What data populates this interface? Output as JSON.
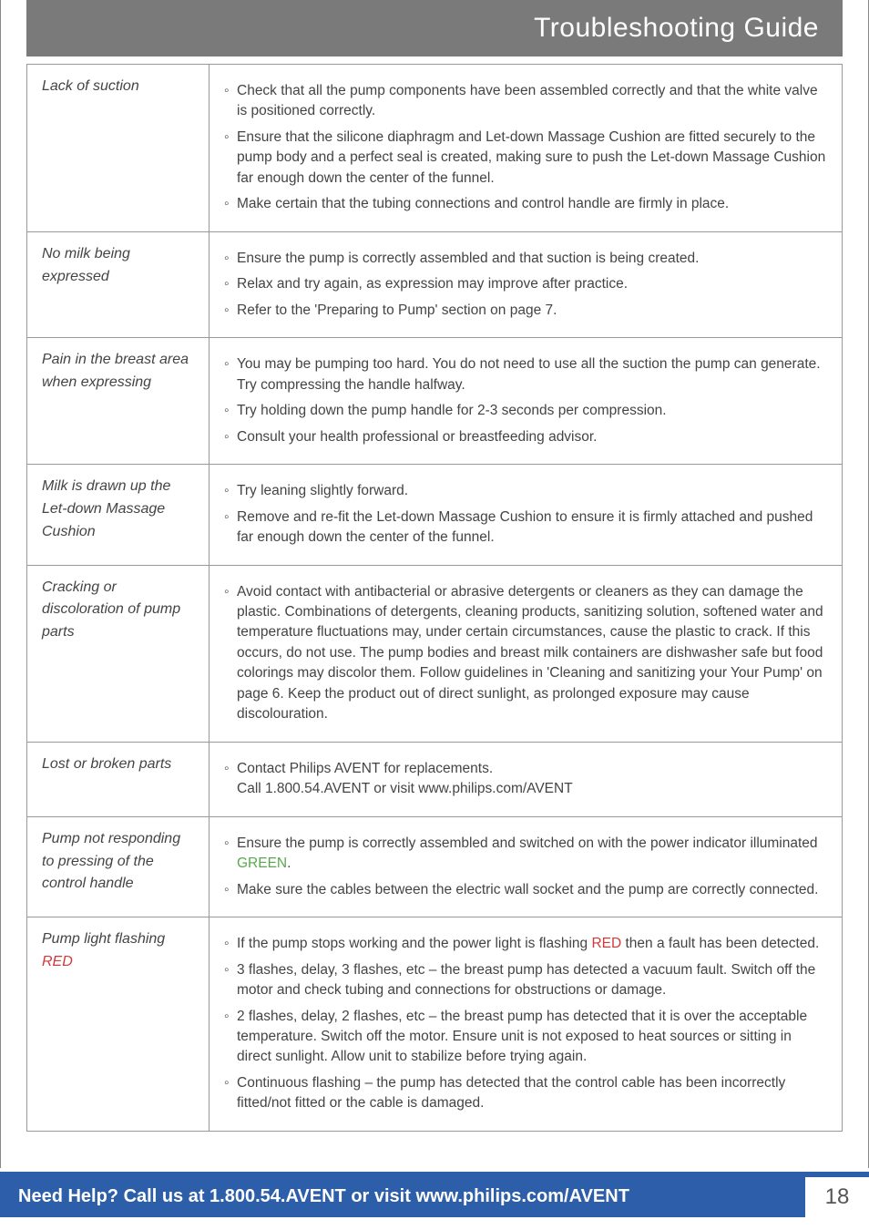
{
  "header": {
    "title": "Troubleshooting Guide"
  },
  "rows": [
    {
      "problem": "Lack of suction",
      "items": [
        "Check that all the pump components have been assembled correctly and that the white valve is positioned correctly.",
        "Ensure that the silicone diaphragm and Let-down Massage Cushion are fitted securely to the pump body and a perfect seal is created, making sure to push the Let-down Massage Cushion far enough down the center of the funnel.",
        "Make certain that the tubing connections and control handle are firmly in place."
      ]
    },
    {
      "problem": "No milk being expressed",
      "items": [
        "Ensure the pump is correctly assembled and that suction is being created.",
        "Relax and try again, as expression may improve after practice.",
        "Refer to the 'Preparing to Pump' section on page 7."
      ]
    },
    {
      "problem": "Pain in the breast area when expressing",
      "items": [
        "You may be pumping too hard. You do not need to use all the suction the pump can generate. Try compressing the handle halfway.",
        "Try holding down the pump handle for 2-3 seconds per compression.",
        "Consult your health professional or breastfeeding advisor."
      ]
    },
    {
      "problem": "Milk is drawn up the Let-down Massage Cushion",
      "items": [
        "Try leaning slightly forward.",
        "Remove and re-fit the Let-down Massage Cushion to ensure it is firmly attached and pushed far enough down the center of the funnel."
      ]
    },
    {
      "problem": "Cracking or discoloration of pump parts",
      "items": [
        "Avoid contact with antibacterial or abrasive detergents or cleaners as they can damage the plastic. Combinations of detergents, cleaning products, sanitizing solution, softened water and temperature fluctuations may, under certain circumstances, cause the plastic to crack. If this occurs, do not use. The pump bodies and breast milk containers are dishwasher safe but food colorings may discolor them. Follow guidelines in 'Cleaning and sanitizing your Your Pump' on page 6. Keep the product out of direct sunlight, as prolonged exposure may cause discolouration."
      ]
    },
    {
      "problem": "Lost or broken parts",
      "items": [
        "Contact Philips AVENT for replacements.\nCall 1.800.54.AVENT or visit www.philips.com/AVENT"
      ]
    },
    {
      "problem_html": "Pump not responding to pressing of the control handle",
      "items_html": [
        "Ensure the pump is correctly assembled and switched on with the power indicator illuminated <span class='green'>GREEN</span>.",
        "Make sure the cables between the electric wall socket and the pump are correctly connected."
      ]
    },
    {
      "problem_html": "Pump light flashing <span class='red'>RED</span>",
      "items_html": [
        "If the pump stops working and the power light is flashing <span class='red'>RED</span> then a fault has been detected.",
        "3 flashes, delay, 3 flashes, etc – the breast pump has detected a vacuum fault. Switch off the motor and check tubing and connections for obstructions or damage.",
        "2 flashes, delay, 2 flashes, etc – the breast pump has detected that it is over the acceptable temperature. Switch off the motor. Ensure unit is not exposed to heat sources or sitting in direct sunlight. Allow unit to stabilize before trying again.",
        "Continuous flashing – the pump has detected that the control cable has been incorrectly fitted/not fitted or the cable is damaged."
      ]
    }
  ],
  "footer": {
    "help_text": "Need Help? Call us at 1.800.54.AVENT or visit www.philips.com/AVENT",
    "page_number": "18"
  }
}
